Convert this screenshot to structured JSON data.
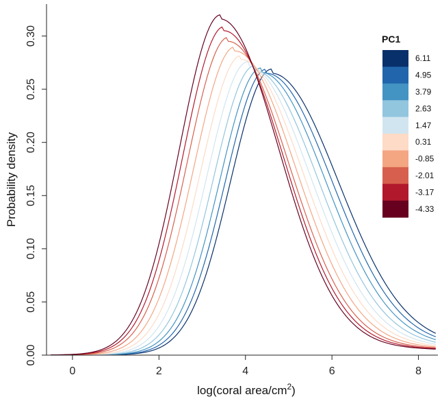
{
  "chart_data": {
    "type": "line",
    "title": "",
    "xlabel": "log(coral area/cm",
    "xlabel_superscript": "2",
    "xlabel_suffix": ")",
    "ylabel": "Probability density",
    "xlim": [
      -0.6,
      8.45
    ],
    "ylim": [
      0.0,
      0.33
    ],
    "xticks": [
      0,
      2,
      4,
      6,
      8
    ],
    "yticks": [
      0.0,
      0.05,
      0.1,
      0.15,
      0.2,
      0.25,
      0.3
    ],
    "xtick_labels": [
      "0",
      "2",
      "4",
      "6",
      "8"
    ],
    "ytick_labels": [
      "0.00",
      "0.05",
      "0.10",
      "0.15",
      "0.20",
      "0.25",
      "0.30"
    ],
    "grid": false,
    "x_range_curves": [
      -0.5,
      8.4
    ],
    "legend": {
      "title": "PC1",
      "placement": "top-right",
      "entries": [
        "6.11",
        "4.95",
        "3.79",
        "2.63",
        "1.47",
        "0.31",
        "-0.85",
        "-2.01",
        "-3.17",
        "-4.33"
      ]
    },
    "series": [
      {
        "name": "6.11",
        "color": "#08306b",
        "mode": 4.6,
        "peak": 0.265,
        "shape": 1.1
      },
      {
        "name": "4.95",
        "color": "#2166ac",
        "mode": 4.48,
        "peak": 0.265,
        "shape": 1.0
      },
      {
        "name": "3.79",
        "color": "#4393c3",
        "mode": 4.35,
        "peak": 0.266,
        "shape": 0.9
      },
      {
        "name": "2.63",
        "color": "#92c5de",
        "mode": 4.2,
        "peak": 0.268,
        "shape": 0.8
      },
      {
        "name": "1.47",
        "color": "#d1e5f0",
        "mode": 4.05,
        "peak": 0.272,
        "shape": 0.7
      },
      {
        "name": "0.31",
        "color": "#fddbc7",
        "mode": 3.9,
        "peak": 0.278,
        "shape": 0.6
      },
      {
        "name": "-0.85",
        "color": "#f4a582",
        "mode": 3.75,
        "peak": 0.286,
        "shape": 0.5
      },
      {
        "name": "-2.01",
        "color": "#d6604d",
        "mode": 3.6,
        "peak": 0.295,
        "shape": 0.4
      },
      {
        "name": "-3.17",
        "color": "#b2182b",
        "mode": 3.5,
        "peak": 0.305,
        "shape": 0.3
      },
      {
        "name": "-4.33",
        "color": "#67001f",
        "mode": 3.42,
        "peak": 0.316,
        "shape": 0.2
      }
    ]
  }
}
